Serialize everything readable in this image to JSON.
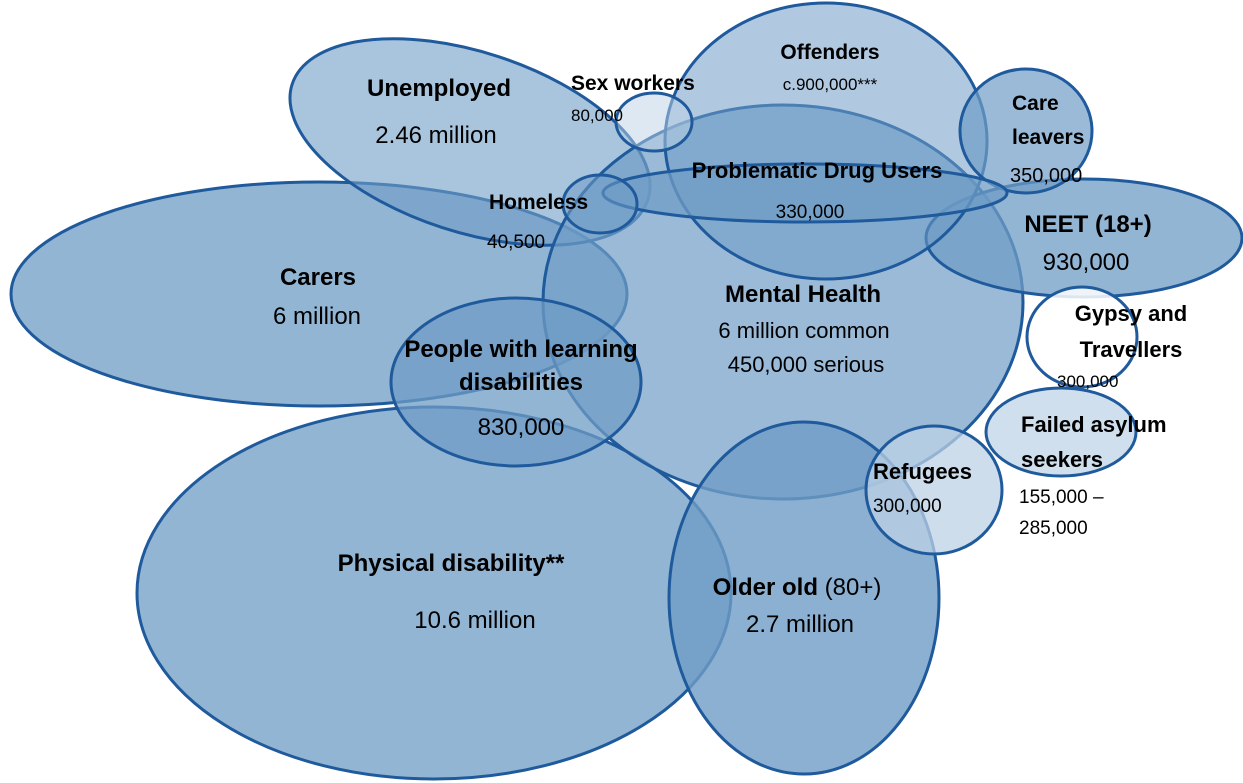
{
  "colors": {
    "fill_medium": "#6f9cc6",
    "fill_light": "#bcd1e6",
    "stroke": "#1f5a9c"
  },
  "groups": {
    "unemployed": {
      "name": "Unemployed",
      "value": "2.46 million"
    },
    "sex_workers": {
      "name": "Sex workers",
      "value": "80,000"
    },
    "offenders": {
      "name": "Offenders",
      "value": "c.900,000***"
    },
    "care_leavers": {
      "name_line1": "Care",
      "name_line2": "leavers",
      "value": "350,000"
    },
    "problematic_drug_users": {
      "name": "Problematic Drug Users",
      "value": "330,000"
    },
    "homeless": {
      "name": "Homeless",
      "value": "40,500"
    },
    "neet": {
      "name": "NEET (18+)",
      "value": "930,000"
    },
    "carers": {
      "name": "Carers",
      "value": "6 million"
    },
    "mental_health": {
      "name": "Mental Health",
      "value_line1": "6 million common",
      "value_line2": "450,000 serious"
    },
    "learning_disabilities": {
      "name_line1": "People with learning",
      "name_line2": "disabilities",
      "value": "830,000"
    },
    "gypsy_travellers": {
      "name_line1": "Gypsy and",
      "name_line2": "Travellers",
      "value": "300,000"
    },
    "failed_asylum_seekers": {
      "name_line1": "Failed asylum",
      "name_line2": "seekers",
      "value_line1": "155,000 –",
      "value_line2": "285,000"
    },
    "refugees": {
      "name": "Refugees",
      "value": "300,000"
    },
    "physical_disability": {
      "name": "Physical disability**",
      "value": "10.6 million"
    },
    "older_old": {
      "name": "Older old",
      "name_suffix": " (80+)",
      "value": "2.7 million"
    }
  }
}
